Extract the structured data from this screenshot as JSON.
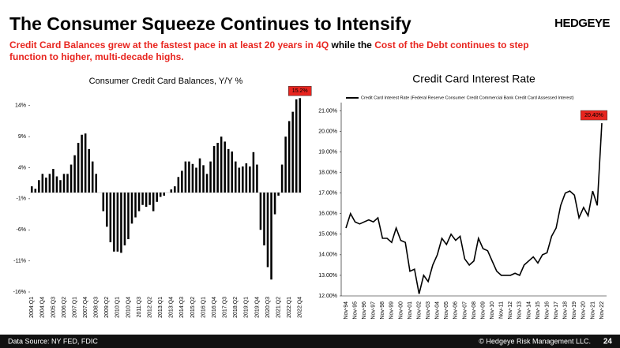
{
  "header": {
    "title": "The Consumer Squeeze Continues to Intensify",
    "logo": "HEDGEYE",
    "subtitle": [
      [
        {
          "text": "Credit Card Balances grew at the fastest pace in at least 20 years in 4Q",
          "color": "#e8251f"
        },
        {
          "text": " while the ",
          "color": "#000000"
        },
        {
          "text": "Cost of the Debt continues to step",
          "color": "#e8251f"
        }
      ],
      [
        {
          "text": "function to higher, multi-decade highs.",
          "color": "#e8251f"
        }
      ]
    ]
  },
  "chart_data": [
    {
      "type": "bar",
      "title": "Consumer Credit Card Balances, Y/Y %",
      "categories": [
        "2004:Q1",
        null,
        null,
        "2004:Q4",
        null,
        null,
        "2005:Q3",
        null,
        null,
        "2006:Q2",
        null,
        null,
        "2007:Q1",
        null,
        null,
        "2007:Q4",
        null,
        null,
        "2008:Q3",
        null,
        null,
        "2009:Q2",
        null,
        null,
        "2010:Q1",
        null,
        null,
        "2010:Q4",
        null,
        null,
        "2011:Q3",
        null,
        null,
        "2012:Q2",
        null,
        null,
        "2013:Q1",
        null,
        null,
        "2013:Q4",
        null,
        null,
        "2014:Q3",
        null,
        null,
        "2015:Q2",
        null,
        null,
        "2016:Q1",
        null,
        null,
        "2016:Q4",
        null,
        null,
        "2017:Q3",
        null,
        null,
        "2018:Q2",
        null,
        null,
        "2019:Q1",
        null,
        null,
        "2019:Q4",
        null,
        null,
        "2020:Q3",
        null,
        null,
        "2021:Q2",
        null,
        null,
        "2022:Q1",
        null,
        null,
        "2022:Q4"
      ],
      "values": [
        1,
        0.6,
        2,
        3,
        2.4,
        3,
        3.8,
        2.6,
        2,
        3,
        3,
        4.5,
        6,
        8,
        9.3,
        9.5,
        7,
        5,
        3,
        0,
        -3,
        -5.5,
        -8,
        -9.5,
        -9.5,
        -9.7,
        -8.5,
        -7.5,
        -5,
        -4,
        -3,
        -2,
        -2.3,
        -2,
        -3,
        -1.5,
        -0.7,
        -0.5,
        0,
        0.5,
        1,
        2.5,
        3.5,
        5,
        5,
        4.6,
        4,
        5.5,
        4.4,
        3,
        5,
        7.5,
        8,
        9,
        8.2,
        7,
        6.6,
        5,
        4,
        4.2,
        4.7,
        4.2,
        6.5,
        4.5,
        -6,
        -8.5,
        -12,
        -14,
        -3.5,
        -0.5,
        4.5,
        9,
        11.5,
        13,
        15,
        15.2
      ],
      "value_labels": [
        null,
        null,
        null,
        null,
        null,
        null,
        null,
        null,
        null,
        null,
        null,
        null,
        null,
        null,
        null,
        null,
        null,
        null,
        null,
        null,
        null,
        null,
        null,
        null,
        null,
        null,
        null,
        null,
        null,
        null,
        null,
        null,
        null,
        null,
        null,
        null,
        null,
        null,
        null,
        null,
        null,
        null,
        null,
        null,
        null,
        null,
        null,
        null,
        null,
        null,
        null,
        null,
        null,
        null,
        null,
        null,
        null,
        null,
        null,
        null,
        null,
        null,
        null,
        null,
        null,
        null,
        null,
        null,
        null,
        null,
        null,
        null,
        null,
        null,
        null,
        "15.2%"
      ],
      "color": "#000000",
      "label_color": "#e8251f",
      "ylim": [
        -16,
        16
      ],
      "yticks": [
        {
          "value": 14,
          "label": "14%"
        },
        {
          "value": 9,
          "label": "9%"
        },
        {
          "value": 4,
          "label": "4%"
        },
        {
          "value": -1,
          "label": "-1%"
        },
        {
          "value": -6,
          "label": "-6%"
        },
        {
          "value": -11,
          "label": "-11%"
        },
        {
          "value": -16,
          "label": "-16%"
        }
      ]
    },
    {
      "type": "line",
      "title": "Credit Card Interest Rate",
      "categories": [
        "Nov-94",
        null,
        "Nov-95",
        null,
        "Nov-96",
        null,
        "Nov-97",
        null,
        "Nov-98",
        null,
        "Nov-99",
        null,
        "Nov-00",
        null,
        "Nov-01",
        null,
        "Nov-02",
        null,
        "Nov-03",
        null,
        "Nov-04",
        null,
        "Nov-05",
        null,
        "Nov-06",
        null,
        "Nov-07",
        null,
        "Nov-08",
        null,
        "Nov-09",
        null,
        "Nov-10",
        null,
        "Nov-11",
        null,
        "Nov-12",
        null,
        "Nov-13",
        null,
        "Nov-14",
        null,
        "Nov-15",
        null,
        "Nov-16",
        null,
        "Nov-17",
        null,
        "Nov-18",
        null,
        "Nov-19",
        null,
        "Nov-20",
        null,
        "Nov-21",
        null,
        "Nov-22"
      ],
      "series": [
        {
          "name": "Credit Card Interest Rate (Federal Reserve Consumer Credit Commercial Bank Credit Card Assessed Interest)",
          "color": "#000000",
          "values": [
            15.3,
            16.0,
            15.6,
            15.5,
            15.6,
            15.7,
            15.6,
            15.8,
            14.8,
            14.8,
            14.6,
            15.3,
            14.7,
            14.6,
            13.2,
            13.3,
            12.1,
            13.0,
            12.7,
            13.5,
            14.0,
            14.8,
            14.5,
            15.0,
            14.7,
            14.9,
            13.8,
            13.5,
            13.7,
            14.8,
            14.3,
            14.2,
            13.7,
            13.2,
            13.0,
            13.0,
            13.0,
            13.1,
            13.0,
            13.5,
            13.7,
            13.9,
            13.6,
            14.0,
            14.1,
            14.9,
            15.3,
            16.4,
            17.0,
            17.1,
            16.9,
            15.8,
            16.3,
            15.9,
            17.1,
            16.4,
            20.4
          ],
          "value_labels": [
            null,
            null,
            null,
            null,
            null,
            null,
            null,
            null,
            null,
            null,
            null,
            null,
            null,
            null,
            null,
            null,
            null,
            null,
            null,
            null,
            null,
            null,
            null,
            null,
            null,
            null,
            null,
            null,
            null,
            null,
            null,
            null,
            null,
            null,
            null,
            null,
            null,
            null,
            null,
            null,
            null,
            null,
            null,
            null,
            null,
            null,
            null,
            null,
            null,
            null,
            null,
            null,
            null,
            null,
            null,
            null,
            "20.40%"
          ]
        }
      ],
      "label_color": "#e8251f",
      "ylim": [
        12,
        21.4
      ],
      "yticks": [
        {
          "value": 12,
          "label": "12.00%"
        },
        {
          "value": 13,
          "label": "13.00%"
        },
        {
          "value": 14,
          "label": "14.00%"
        },
        {
          "value": 15,
          "label": "15.00%"
        },
        {
          "value": 16,
          "label": "16.00%"
        },
        {
          "value": 17,
          "label": "17.00%"
        },
        {
          "value": 18,
          "label": "18.00%"
        },
        {
          "value": 19,
          "label": "19.00%"
        },
        {
          "value": 20,
          "label": "20.00%"
        },
        {
          "value": 21,
          "label": "21.00%"
        }
      ]
    }
  ],
  "footer": {
    "source": "Data Source: NY FED, FDIC",
    "copyright": "© Hedgeye Risk Management LLC.",
    "page": "24"
  }
}
